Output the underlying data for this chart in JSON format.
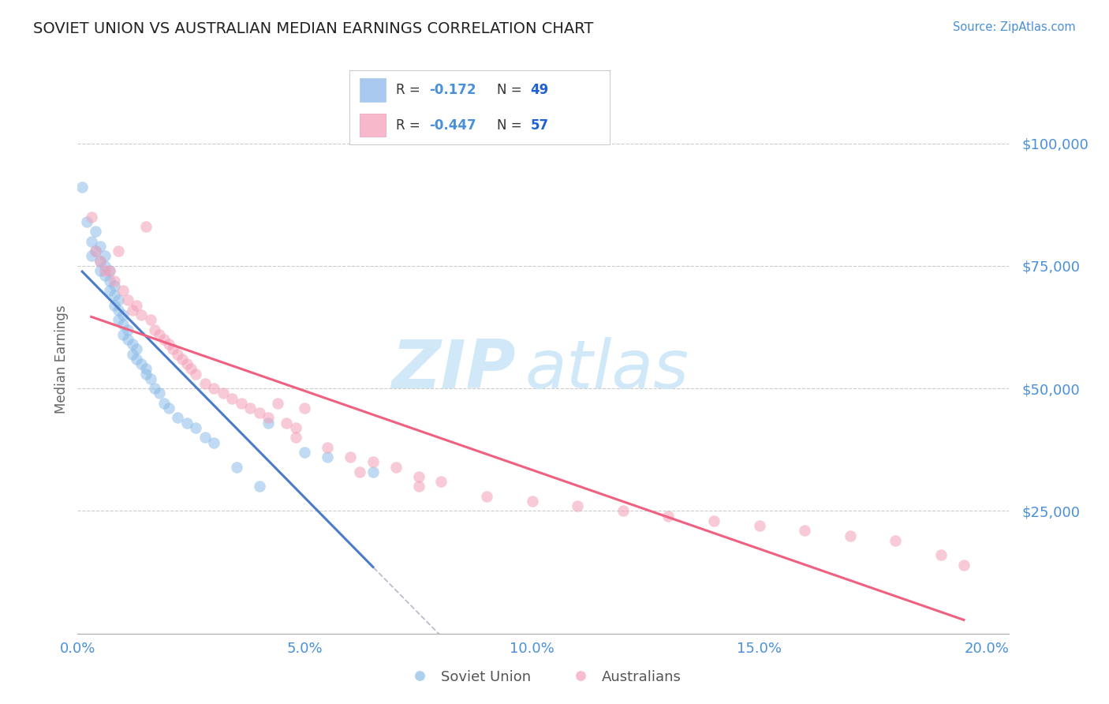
{
  "title": "SOVIET UNION VS AUSTRALIAN MEDIAN EARNINGS CORRELATION CHART",
  "source": "Source: ZipAtlas.com",
  "ylabel": "Median Earnings",
  "xlim": [
    0.0,
    0.205
  ],
  "ylim": [
    0,
    112000
  ],
  "yticks": [
    0,
    25000,
    50000,
    75000,
    100000
  ],
  "ytick_labels": [
    "",
    "$25,000",
    "$50,000",
    "$75,000",
    "$100,000"
  ],
  "xticks": [
    0.0,
    0.05,
    0.1,
    0.15,
    0.2
  ],
  "xtick_labels": [
    "0.0%",
    "5.0%",
    "10.0%",
    "15.0%",
    "20.0%"
  ],
  "title_color": "#222222",
  "axis_label_color": "#666666",
  "tick_color": "#4a90d9",
  "source_color": "#4a90d9",
  "watermark": "ZIPatlas",
  "watermark_color": "#d0e8f8",
  "series1_color": "#8bbce8",
  "series2_color": "#f4a0b8",
  "trend1_color": "#4a7cc7",
  "trend2_color": "#f06080",
  "dashed_color": "#bbbbcc",
  "legend_rect1_color": "#a8c8f0",
  "legend_rect2_color": "#f8b8cc",
  "legend_r_color": "#333333",
  "legend_n_color": "#2060d0",
  "soviet_x": [
    0.001,
    0.002,
    0.003,
    0.003,
    0.004,
    0.004,
    0.005,
    0.005,
    0.005,
    0.006,
    0.006,
    0.006,
    0.007,
    0.007,
    0.007,
    0.008,
    0.008,
    0.008,
    0.009,
    0.009,
    0.009,
    0.01,
    0.01,
    0.01,
    0.011,
    0.011,
    0.012,
    0.012,
    0.013,
    0.013,
    0.014,
    0.015,
    0.015,
    0.016,
    0.017,
    0.018,
    0.019,
    0.02,
    0.022,
    0.024,
    0.026,
    0.028,
    0.03,
    0.035,
    0.04,
    0.042,
    0.05,
    0.055,
    0.065
  ],
  "soviet_y": [
    91000,
    84000,
    80000,
    77000,
    82000,
    78000,
    79000,
    76000,
    74000,
    77000,
    75000,
    73000,
    74000,
    72000,
    70000,
    71000,
    69000,
    67000,
    68000,
    66000,
    64000,
    65000,
    63000,
    61000,
    62000,
    60000,
    59000,
    57000,
    58000,
    56000,
    55000,
    54000,
    53000,
    52000,
    50000,
    49000,
    47000,
    46000,
    44000,
    43000,
    42000,
    40000,
    39000,
    34000,
    30000,
    43000,
    37000,
    36000,
    33000
  ],
  "australian_x": [
    0.003,
    0.004,
    0.005,
    0.006,
    0.007,
    0.008,
    0.009,
    0.01,
    0.011,
    0.012,
    0.013,
    0.014,
    0.015,
    0.016,
    0.017,
    0.018,
    0.019,
    0.02,
    0.021,
    0.022,
    0.023,
    0.024,
    0.025,
    0.026,
    0.028,
    0.03,
    0.032,
    0.034,
    0.036,
    0.038,
    0.04,
    0.042,
    0.044,
    0.046,
    0.048,
    0.05,
    0.055,
    0.06,
    0.065,
    0.07,
    0.075,
    0.08,
    0.09,
    0.1,
    0.11,
    0.12,
    0.13,
    0.14,
    0.15,
    0.16,
    0.17,
    0.18,
    0.19,
    0.195,
    0.048,
    0.062,
    0.075
  ],
  "australian_y": [
    85000,
    78000,
    76000,
    74000,
    74000,
    72000,
    78000,
    70000,
    68000,
    66000,
    67000,
    65000,
    83000,
    64000,
    62000,
    61000,
    60000,
    59000,
    58000,
    57000,
    56000,
    55000,
    54000,
    53000,
    51000,
    50000,
    49000,
    48000,
    47000,
    46000,
    45000,
    44000,
    47000,
    43000,
    42000,
    46000,
    38000,
    36000,
    35000,
    34000,
    32000,
    31000,
    28000,
    27000,
    26000,
    25000,
    24000,
    23000,
    22000,
    21000,
    20000,
    19000,
    16000,
    14000,
    40000,
    33000,
    30000
  ]
}
